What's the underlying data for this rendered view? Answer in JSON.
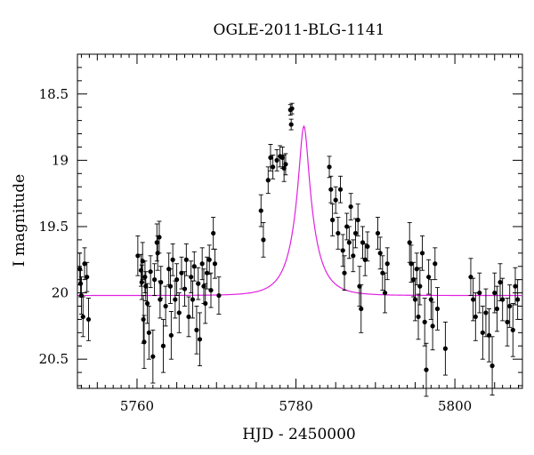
{
  "chart_data": {
    "type": "scatter",
    "title": "OGLE-2011-BLG-1141",
    "xlabel": "HJD - 2450000",
    "ylabel": "I magnitude",
    "xlim": [
      5752.5,
      5808.5
    ],
    "ylim": [
      20.72,
      18.2
    ],
    "y_inverted": true,
    "x_ticks": [
      5760,
      5780,
      5800
    ],
    "y_ticks": [
      18.5,
      19,
      19.5,
      20,
      20.5
    ],
    "x_tick_labels": [
      "5760",
      "5780",
      "5800"
    ],
    "y_tick_labels": [
      "18.5",
      "19",
      "19.5",
      "20",
      "20.5"
    ],
    "grid": false,
    "colors": {
      "data": "#000000",
      "model": "#e020e0"
    },
    "model": {
      "t0": 5781.0,
      "tE": 2.8,
      "u0": 0.2,
      "baseline": 20.02,
      "blend_fraction": 0.55
    },
    "series": [
      {
        "kind": "points_with_errorbars",
        "points": [
          {
            "x": 5752.8,
            "y": 19.82,
            "err": 0.12
          },
          {
            "x": 5752.9,
            "y": 19.93,
            "err": 0.1
          },
          {
            "x": 5753.0,
            "y": 20.02,
            "err": 0.14
          },
          {
            "x": 5753.2,
            "y": 20.18,
            "err": 0.15
          },
          {
            "x": 5753.4,
            "y": 19.78,
            "err": 0.12
          },
          {
            "x": 5753.7,
            "y": 19.88,
            "err": 0.11
          },
          {
            "x": 5753.9,
            "y": 20.2,
            "err": 0.16
          },
          {
            "x": 5760.1,
            "y": 19.72,
            "err": 0.15
          },
          {
            "x": 5760.5,
            "y": 19.83,
            "err": 0.12
          },
          {
            "x": 5760.6,
            "y": 19.92,
            "err": 0.13
          },
          {
            "x": 5760.7,
            "y": 19.76,
            "err": 0.14
          },
          {
            "x": 5760.8,
            "y": 20.2,
            "err": 0.18
          },
          {
            "x": 5760.9,
            "y": 20.37,
            "err": 0.2
          },
          {
            "x": 5761.0,
            "y": 19.88,
            "err": 0.12
          },
          {
            "x": 5761.1,
            "y": 19.95,
            "err": 0.11
          },
          {
            "x": 5761.3,
            "y": 20.08,
            "err": 0.15
          },
          {
            "x": 5761.5,
            "y": 20.3,
            "err": 0.2
          },
          {
            "x": 5761.7,
            "y": 19.84,
            "err": 0.12
          },
          {
            "x": 5762.0,
            "y": 20.48,
            "err": 0.2
          },
          {
            "x": 5762.2,
            "y": 19.9,
            "err": 0.12
          },
          {
            "x": 5762.5,
            "y": 19.62,
            "err": 0.14
          },
          {
            "x": 5762.6,
            "y": 19.7,
            "err": 0.13
          },
          {
            "x": 5762.8,
            "y": 19.58,
            "err": 0.12
          },
          {
            "x": 5762.9,
            "y": 20.05,
            "err": 0.14
          },
          {
            "x": 5763.0,
            "y": 19.92,
            "err": 0.12
          },
          {
            "x": 5763.3,
            "y": 20.4,
            "err": 0.2
          },
          {
            "x": 5763.6,
            "y": 20.1,
            "err": 0.15
          },
          {
            "x": 5764.0,
            "y": 19.82,
            "err": 0.12
          },
          {
            "x": 5764.2,
            "y": 19.95,
            "err": 0.13
          },
          {
            "x": 5764.3,
            "y": 20.32,
            "err": 0.18
          },
          {
            "x": 5764.5,
            "y": 19.75,
            "err": 0.12
          },
          {
            "x": 5764.8,
            "y": 20.05,
            "err": 0.14
          },
          {
            "x": 5765.0,
            "y": 19.9,
            "err": 0.12
          },
          {
            "x": 5765.3,
            "y": 20.15,
            "err": 0.15
          },
          {
            "x": 5765.6,
            "y": 19.85,
            "err": 0.12
          },
          {
            "x": 5766.0,
            "y": 19.97,
            "err": 0.13
          },
          {
            "x": 5766.2,
            "y": 19.75,
            "err": 0.12
          },
          {
            "x": 5766.5,
            "y": 20.18,
            "err": 0.15
          },
          {
            "x": 5766.8,
            "y": 19.88,
            "err": 0.12
          },
          {
            "x": 5767.0,
            "y": 20.05,
            "err": 0.14
          },
          {
            "x": 5767.2,
            "y": 19.8,
            "err": 0.11
          },
          {
            "x": 5767.5,
            "y": 20.28,
            "err": 0.18
          },
          {
            "x": 5767.7,
            "y": 19.93,
            "err": 0.12
          },
          {
            "x": 5767.9,
            "y": 20.35,
            "err": 0.2
          },
          {
            "x": 5768.2,
            "y": 19.78,
            "err": 0.12
          },
          {
            "x": 5768.4,
            "y": 19.95,
            "err": 0.13
          },
          {
            "x": 5768.6,
            "y": 20.08,
            "err": 0.15
          },
          {
            "x": 5768.8,
            "y": 19.85,
            "err": 0.12
          },
          {
            "x": 5769.1,
            "y": 19.75,
            "err": 0.11
          },
          {
            "x": 5769.3,
            "y": 19.98,
            "err": 0.13
          },
          {
            "x": 5769.6,
            "y": 19.55,
            "err": 0.12
          },
          {
            "x": 5769.8,
            "y": 19.78,
            "err": 0.11
          },
          {
            "x": 5770.3,
            "y": 20.02,
            "err": 0.14
          },
          {
            "x": 5775.6,
            "y": 19.38,
            "err": 0.12
          },
          {
            "x": 5775.9,
            "y": 19.6,
            "err": 0.13
          },
          {
            "x": 5776.5,
            "y": 19.15,
            "err": 0.1
          },
          {
            "x": 5776.8,
            "y": 18.98,
            "err": 0.1
          },
          {
            "x": 5777.1,
            "y": 19.05,
            "err": 0.09
          },
          {
            "x": 5777.6,
            "y": 19.0,
            "err": 0.08
          },
          {
            "x": 5778.0,
            "y": 18.97,
            "err": 0.08
          },
          {
            "x": 5778.3,
            "y": 18.98,
            "err": 0.08
          },
          {
            "x": 5778.5,
            "y": 19.06,
            "err": 0.1
          },
          {
            "x": 5778.7,
            "y": 19.03,
            "err": 0.08
          },
          {
            "x": 5779.3,
            "y": 18.62,
            "err": 0.04
          },
          {
            "x": 5779.5,
            "y": 18.61,
            "err": 0.04
          },
          {
            "x": 5779.4,
            "y": 18.73,
            "err": 0.04
          },
          {
            "x": 5784.2,
            "y": 19.05,
            "err": 0.08
          },
          {
            "x": 5784.4,
            "y": 19.22,
            "err": 0.1
          },
          {
            "x": 5784.6,
            "y": 19.45,
            "err": 0.12
          },
          {
            "x": 5785.0,
            "y": 19.3,
            "err": 0.1
          },
          {
            "x": 5785.3,
            "y": 19.55,
            "err": 0.12
          },
          {
            "x": 5785.6,
            "y": 19.22,
            "err": 0.1
          },
          {
            "x": 5785.9,
            "y": 19.68,
            "err": 0.12
          },
          {
            "x": 5786.1,
            "y": 19.85,
            "err": 0.13
          },
          {
            "x": 5786.4,
            "y": 19.5,
            "err": 0.1
          },
          {
            "x": 5786.7,
            "y": 19.62,
            "err": 0.12
          },
          {
            "x": 5786.9,
            "y": 19.35,
            "err": 0.1
          },
          {
            "x": 5787.2,
            "y": 19.72,
            "err": 0.12
          },
          {
            "x": 5787.5,
            "y": 19.55,
            "err": 0.11
          },
          {
            "x": 5787.8,
            "y": 19.45,
            "err": 0.12
          },
          {
            "x": 5788.0,
            "y": 19.95,
            "err": 0.15
          },
          {
            "x": 5788.2,
            "y": 20.12,
            "err": 0.18
          },
          {
            "x": 5788.4,
            "y": 19.62,
            "err": 0.12
          },
          {
            "x": 5788.7,
            "y": 19.75,
            "err": 0.12
          },
          {
            "x": 5789.0,
            "y": 19.65,
            "err": 0.11
          },
          {
            "x": 5790.3,
            "y": 19.55,
            "err": 0.12
          },
          {
            "x": 5790.6,
            "y": 19.7,
            "err": 0.12
          },
          {
            "x": 5790.9,
            "y": 19.85,
            "err": 0.13
          },
          {
            "x": 5791.2,
            "y": 20.0,
            "err": 0.15
          },
          {
            "x": 5791.5,
            "y": 19.78,
            "err": 0.12
          },
          {
            "x": 5794.3,
            "y": 19.62,
            "err": 0.15
          },
          {
            "x": 5794.5,
            "y": 19.78,
            "err": 0.14
          },
          {
            "x": 5794.8,
            "y": 19.9,
            "err": 0.13
          },
          {
            "x": 5795.0,
            "y": 20.05,
            "err": 0.16
          },
          {
            "x": 5795.2,
            "y": 19.82,
            "err": 0.12
          },
          {
            "x": 5795.4,
            "y": 20.18,
            "err": 0.17
          },
          {
            "x": 5795.6,
            "y": 19.95,
            "err": 0.14
          },
          {
            "x": 5795.9,
            "y": 19.7,
            "err": 0.13
          },
          {
            "x": 5796.2,
            "y": 20.22,
            "err": 0.18
          },
          {
            "x": 5796.4,
            "y": 20.58,
            "err": 0.2
          },
          {
            "x": 5796.7,
            "y": 19.88,
            "err": 0.13
          },
          {
            "x": 5797.0,
            "y": 20.05,
            "err": 0.15
          },
          {
            "x": 5797.2,
            "y": 20.25,
            "err": 0.18
          },
          {
            "x": 5797.5,
            "y": 19.78,
            "err": 0.12
          },
          {
            "x": 5797.8,
            "y": 20.12,
            "err": 0.16
          },
          {
            "x": 5798.8,
            "y": 20.42,
            "err": 0.2
          },
          {
            "x": 5802.0,
            "y": 19.88,
            "err": 0.14
          },
          {
            "x": 5802.3,
            "y": 20.05,
            "err": 0.16
          },
          {
            "x": 5802.6,
            "y": 20.18,
            "err": 0.18
          },
          {
            "x": 5803.1,
            "y": 20.0,
            "err": 0.15
          },
          {
            "x": 5803.5,
            "y": 20.3,
            "err": 0.2
          },
          {
            "x": 5803.9,
            "y": 20.15,
            "err": 0.18
          },
          {
            "x": 5804.3,
            "y": 20.32,
            "err": 0.2
          },
          {
            "x": 5804.7,
            "y": 20.55,
            "err": 0.22
          },
          {
            "x": 5805.0,
            "y": 20.0,
            "err": 0.15
          },
          {
            "x": 5805.3,
            "y": 20.12,
            "err": 0.17
          },
          {
            "x": 5805.7,
            "y": 19.92,
            "err": 0.14
          },
          {
            "x": 5806.0,
            "y": 20.05,
            "err": 0.16
          },
          {
            "x": 5806.6,
            "y": 20.22,
            "err": 0.18
          },
          {
            "x": 5806.9,
            "y": 20.1,
            "err": 0.16
          },
          {
            "x": 5807.3,
            "y": 20.28,
            "err": 0.2
          },
          {
            "x": 5807.6,
            "y": 19.95,
            "err": 0.14
          },
          {
            "x": 5807.9,
            "y": 20.05,
            "err": 0.15
          }
        ]
      }
    ]
  }
}
